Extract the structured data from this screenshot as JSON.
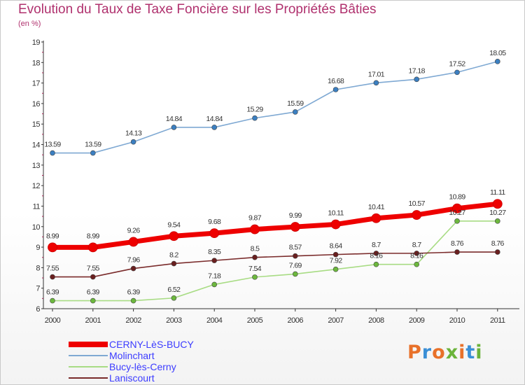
{
  "title": "Evolution du Taux de Taxe Foncière sur les Propriétés Bâties",
  "subtitle": "(en %)",
  "logo": "Proxiti",
  "logo_colors": [
    "#e8712a",
    "#3a8fd6",
    "#e8712a",
    "#6bb33a",
    "#e8712a",
    "#3a8fd6",
    "#6bb33a"
  ],
  "chart_data": {
    "type": "line",
    "title": "Evolution du Taux de Taxe Foncière sur les Propriétés Bâties",
    "ylabel": "(en %)",
    "xlabel": "",
    "x": [
      "2000",
      "2001",
      "2002",
      "2003",
      "2004",
      "2005",
      "2006",
      "2007",
      "2008",
      "2009",
      "2010",
      "2011"
    ],
    "ylim": [
      6,
      19
    ],
    "yticks": [
      6,
      7,
      8,
      9,
      10,
      11,
      12,
      13,
      14,
      15,
      16,
      17,
      18,
      19
    ],
    "grid": false,
    "legend_position": "bottom-left",
    "series": [
      {
        "name": "CERNY-LèS-BUCY",
        "color": "#ee0000",
        "values": [
          8.99,
          8.99,
          9.26,
          9.54,
          9.68,
          9.87,
          9.99,
          10.11,
          10.41,
          10.57,
          10.89,
          11.11
        ],
        "labels": [
          "8.99",
          "8.99",
          "9.26",
          "9.54",
          "9.68",
          "9.87",
          "9.99",
          "10.11",
          "10.41",
          "10.57",
          "10.89",
          "11.11"
        ]
      },
      {
        "name": "Molinchart",
        "color": "#7fa9d3",
        "marker": "#3b7fc1",
        "values": [
          13.59,
          13.59,
          14.13,
          14.84,
          14.84,
          15.29,
          15.59,
          16.68,
          17.01,
          17.18,
          17.52,
          18.05
        ],
        "labels": [
          "13.59",
          "13.59",
          "14.13",
          "14.84",
          "14.84",
          "15.29",
          "15.59",
          "16.68",
          "17.01",
          "17.18",
          "17.52",
          "18.05"
        ]
      },
      {
        "name": "Bucy-lès-Cerny",
        "color": "#a8dc84",
        "marker": "#6cb83d",
        "values": [
          6.39,
          6.39,
          6.39,
          6.52,
          7.18,
          7.54,
          7.69,
          7.92,
          8.16,
          8.16,
          10.27,
          10.27
        ],
        "labels": [
          "6.39",
          "6.39",
          "6.39",
          "6.52",
          "7.18",
          "7.54",
          "7.69",
          "7.92",
          "8.16",
          "8.16",
          "10.27",
          "10.27"
        ]
      },
      {
        "name": "Laniscourt",
        "color": "#7a2b2b",
        "marker": "#6a1f1f",
        "values": [
          7.55,
          7.55,
          7.96,
          8.2,
          8.35,
          8.5,
          8.57,
          8.64,
          8.7,
          8.7,
          8.76,
          8.76
        ],
        "labels": [
          "7.55",
          "7.55",
          "7.96",
          "8.2",
          "8.35",
          "8.5",
          "8.57",
          "8.64",
          "8.7",
          "8.7",
          "8.76",
          "8.76"
        ]
      }
    ]
  }
}
